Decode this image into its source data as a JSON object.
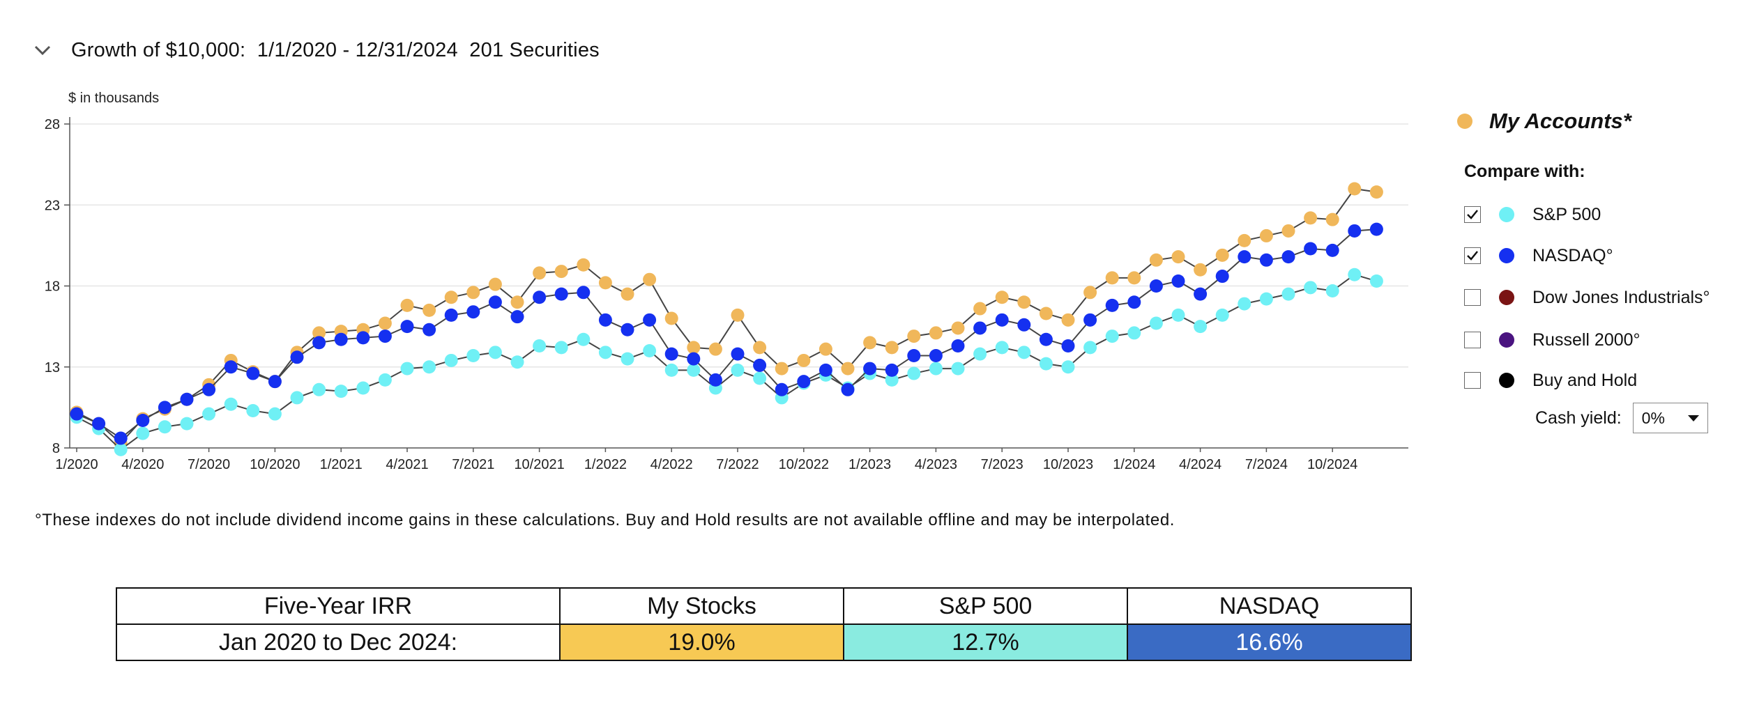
{
  "header": {
    "title": "Growth of $10,000:  1/1/2020 - 12/31/2024  201 Securities"
  },
  "chart_units": "$ in thousands",
  "chart_data": {
    "type": "line",
    "x": [
      "1/2020",
      "2/2020",
      "3/2020",
      "4/2020",
      "5/2020",
      "6/2020",
      "7/2020",
      "8/2020",
      "9/2020",
      "10/2020",
      "11/2020",
      "12/2020",
      "1/2021",
      "2/2021",
      "3/2021",
      "4/2021",
      "5/2021",
      "6/2021",
      "7/2021",
      "8/2021",
      "9/2021",
      "10/2021",
      "11/2021",
      "12/2021",
      "1/2022",
      "2/2022",
      "3/2022",
      "4/2022",
      "5/2022",
      "6/2022",
      "7/2022",
      "8/2022",
      "9/2022",
      "10/2022",
      "11/2022",
      "12/2022",
      "1/2023",
      "2/2023",
      "3/2023",
      "4/2023",
      "5/2023",
      "6/2023",
      "7/2023",
      "8/2023",
      "9/2023",
      "10/2023",
      "11/2023",
      "12/2023",
      "1/2024",
      "2/2024",
      "3/2024",
      "4/2024",
      "5/2024",
      "6/2024",
      "7/2024",
      "8/2024",
      "9/2024",
      "10/2024",
      "11/2024",
      "12/2024"
    ],
    "x_tick_labels": [
      "1/2020",
      "4/2020",
      "7/2020",
      "10/2020",
      "1/2021",
      "4/2021",
      "7/2021",
      "10/2021",
      "1/2022",
      "4/2022",
      "7/2022",
      "10/2022",
      "1/2023",
      "4/2023",
      "7/2023",
      "10/2023",
      "1/2024",
      "4/2024",
      "7/2024",
      "10/2024"
    ],
    "y_ticks": [
      8,
      13,
      18,
      23,
      28
    ],
    "ylim": [
      8,
      28
    ],
    "ylabel": "$ in thousands",
    "grid": true,
    "series": [
      {
        "name": "My Accounts*",
        "color": "#F0B75A",
        "values": [
          10.2,
          9.5,
          8.3,
          9.8,
          10.4,
          11,
          11.9,
          13.4,
          12.7,
          12.1,
          13.9,
          15.1,
          15.2,
          15.3,
          15.7,
          16.8,
          16.5,
          17.3,
          17.6,
          18.1,
          17,
          18.8,
          18.9,
          19.3,
          18.2,
          17.5,
          18.4,
          16,
          14.2,
          14.1,
          16.2,
          14.2,
          12.9,
          13.4,
          14.1,
          12.9,
          14.5,
          14.2,
          14.9,
          15.1,
          15.4,
          16.6,
          17.3,
          17,
          16.3,
          15.9,
          17.6,
          18.5,
          18.5,
          19.6,
          19.8,
          19,
          19.9,
          20.8,
          21.1,
          21.4,
          22.2,
          22.1,
          24,
          23.8
        ]
      },
      {
        "name": "S&P 500",
        "color": "#6FF0F5",
        "values": [
          9.9,
          9.2,
          7.9,
          8.9,
          9.3,
          9.5,
          10.1,
          10.7,
          10.3,
          10.1,
          11.1,
          11.6,
          11.5,
          11.7,
          12.2,
          12.9,
          13,
          13.4,
          13.7,
          13.9,
          13.3,
          14.3,
          14.2,
          14.7,
          13.9,
          13.5,
          14,
          12.8,
          12.8,
          11.7,
          12.8,
          12.3,
          11.1,
          12,
          12.5,
          11.7,
          12.6,
          12.2,
          12.6,
          12.9,
          12.9,
          13.8,
          14.2,
          13.9,
          13.2,
          13,
          14.2,
          14.9,
          15.1,
          15.7,
          16.2,
          15.5,
          16.2,
          16.9,
          17.2,
          17.5,
          17.9,
          17.7,
          18.7,
          18.3
        ]
      },
      {
        "name": "NASDAQ°",
        "color": "#1530F0",
        "values": [
          10.1,
          9.5,
          8.6,
          9.7,
          10.5,
          11,
          11.6,
          13,
          12.6,
          12.1,
          13.6,
          14.5,
          14.7,
          14.8,
          14.9,
          15.5,
          15.3,
          16.2,
          16.4,
          17,
          16.1,
          17.3,
          17.5,
          17.6,
          15.9,
          15.3,
          15.9,
          13.8,
          13.5,
          12.2,
          13.8,
          13.1,
          11.6,
          12.1,
          12.8,
          11.6,
          12.9,
          12.8,
          13.7,
          13.7,
          14.3,
          15.4,
          15.9,
          15.6,
          14.7,
          14.3,
          15.9,
          16.8,
          17,
          18,
          18.3,
          17.5,
          18.6,
          19.8,
          19.6,
          19.8,
          20.3,
          20.2,
          21.4,
          21.5
        ]
      }
    ]
  },
  "legend": {
    "my_accounts": {
      "label": "My Accounts*",
      "color": "#F0B75A"
    },
    "compare_label": "Compare with:",
    "items": [
      {
        "label": "S&P 500",
        "checked": true,
        "color": "#6FF0F5"
      },
      {
        "label": "NASDAQ°",
        "checked": true,
        "color": "#1530F0"
      },
      {
        "label": "Dow Jones Industrials°",
        "checked": false,
        "color": "#7A1414"
      },
      {
        "label": "Russell 2000°",
        "checked": false,
        "color": "#4A1480"
      },
      {
        "label": "Buy and Hold",
        "checked": false,
        "color": "#000000"
      }
    ],
    "cash_yield_label": "Cash yield:",
    "cash_yield_value": "0%"
  },
  "footnote": "°These indexes do not include dividend income gains in these calculations. Buy and Hold results are not available offline and may be interpolated.",
  "irr_table": {
    "headers": [
      "Five-Year IRR",
      "My Stocks",
      "S&P 500",
      "NASDAQ"
    ],
    "row_label": "Jan 2020 to Dec 2024:",
    "values": [
      "19.0%",
      "12.7%",
      "16.6%"
    ],
    "colors": [
      "#F7C954",
      "#8AEBE0",
      "#3A6BC4"
    ]
  }
}
